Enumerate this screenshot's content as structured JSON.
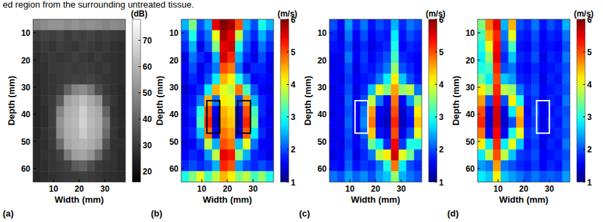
{
  "text": "ed region from the surrounding untreated tissue.",
  "chart_data": [
    {
      "type": "heatmap",
      "panel": "(a)",
      "xlabel": "Width (mm)",
      "ylabel": "Depth (mm)",
      "xlim": [
        2,
        38
      ],
      "ylim": [
        5,
        65
      ],
      "xticks": [
        10,
        20,
        30
      ],
      "yticks": [
        10,
        20,
        30,
        40,
        50,
        60
      ],
      "x": [
        3.5,
        6.5,
        9.5,
        12.5,
        15.5,
        18.5,
        21.5,
        24.5,
        27.5,
        30.5,
        33.5,
        36.5
      ],
      "y": [
        7,
        11,
        15,
        19,
        23,
        27,
        31,
        35,
        39,
        43,
        47,
        51,
        55,
        59,
        63
      ],
      "color": "gray",
      "colorbar_title": "(dB)",
      "clim": [
        16,
        78
      ],
      "cticks": [
        20,
        30,
        40,
        50,
        60,
        70
      ],
      "cells": [
        [
          48,
          50,
          52,
          52,
          50,
          52,
          50,
          51,
          50,
          48,
          50,
          49
        ],
        [
          30,
          32,
          31,
          33,
          30,
          32,
          31,
          32,
          30,
          31,
          30,
          29
        ],
        [
          28,
          30,
          29,
          31,
          30,
          29,
          31,
          30,
          29,
          30,
          28,
          27
        ],
        [
          27,
          29,
          30,
          29,
          30,
          31,
          30,
          29,
          30,
          29,
          28,
          27
        ],
        [
          27,
          28,
          30,
          30,
          31,
          30,
          31,
          30,
          29,
          30,
          28,
          27
        ],
        [
          26,
          28,
          29,
          30,
          31,
          32,
          31,
          32,
          30,
          29,
          28,
          27
        ],
        [
          26,
          28,
          29,
          31,
          40,
          48,
          50,
          45,
          35,
          30,
          28,
          26
        ],
        [
          25,
          28,
          30,
          38,
          55,
          58,
          62,
          57,
          52,
          33,
          29,
          26
        ],
        [
          25,
          27,
          31,
          48,
          58,
          60,
          66,
          60,
          57,
          40,
          28,
          26
        ],
        [
          25,
          27,
          31,
          52,
          59,
          61,
          67,
          61,
          58,
          45,
          29,
          27
        ],
        [
          25,
          28,
          30,
          50,
          58,
          60,
          65,
          60,
          57,
          42,
          29,
          26
        ],
        [
          26,
          27,
          30,
          42,
          56,
          59,
          60,
          58,
          54,
          36,
          28,
          27
        ],
        [
          26,
          28,
          29,
          32,
          46,
          55,
          56,
          52,
          42,
          31,
          28,
          26
        ],
        [
          26,
          27,
          29,
          30,
          32,
          38,
          40,
          35,
          30,
          29,
          28,
          26
        ],
        [
          25,
          27,
          28,
          29,
          30,
          30,
          31,
          30,
          29,
          28,
          27,
          26
        ]
      ]
    },
    {
      "type": "heatmap",
      "panel": "(b)",
      "xlabel": "Width (mm)",
      "ylabel": "Depth (mm)",
      "xlim": [
        2,
        38
      ],
      "ylim": [
        5,
        65
      ],
      "xticks": [
        10,
        20,
        30
      ],
      "yticks": [
        10,
        20,
        30,
        40,
        50,
        60
      ],
      "x": [
        3.5,
        6.5,
        9.5,
        12.5,
        15.5,
        18.5,
        21.5,
        24.5,
        27.5,
        30.5,
        33.5,
        36.5
      ],
      "y": [
        7,
        11,
        15,
        19,
        23,
        27,
        31,
        35,
        39,
        43,
        47,
        51,
        55,
        59,
        63
      ],
      "color": "jet",
      "colorbar_title": "(m/s)",
      "clim": [
        1,
        6
      ],
      "cticks": [
        1,
        2,
        3,
        4,
        5,
        6
      ],
      "boxes": [
        {
          "x": [
            12,
            17
          ],
          "y": [
            35,
            47
          ],
          "color": "#000000"
        },
        {
          "x": [
            24,
            29
          ],
          "y": [
            35,
            47
          ],
          "color": "#000000"
        }
      ],
      "cells": [
        [
          2.5,
          3.5,
          2.0,
          2.5,
          5.5,
          6.0,
          5.8,
          5.0,
          2.5,
          2.0,
          3.0,
          2.5
        ],
        [
          2.0,
          3.0,
          1.8,
          2.2,
          4.0,
          5.8,
          5.5,
          3.8,
          2.2,
          1.8,
          2.5,
          2.0
        ],
        [
          1.8,
          2.5,
          1.5,
          2.0,
          3.5,
          5.5,
          5.6,
          3.0,
          2.0,
          1.6,
          2.2,
          1.8
        ],
        [
          1.5,
          2.2,
          1.8,
          1.6,
          2.5,
          5.6,
          5.2,
          2.5,
          1.8,
          1.5,
          2.0,
          1.6
        ],
        [
          1.6,
          2.0,
          1.5,
          1.8,
          2.2,
          5.0,
          4.8,
          2.2,
          1.5,
          1.8,
          1.8,
          1.5
        ],
        [
          1.5,
          1.8,
          1.6,
          2.0,
          2.8,
          4.5,
          4.2,
          3.0,
          2.2,
          1.6,
          1.7,
          1.6
        ],
        [
          1.4,
          1.6,
          1.8,
          2.8,
          4.5,
          4.0,
          3.8,
          4.8,
          3.2,
          2.0,
          1.6,
          1.5
        ],
        [
          1.5,
          1.7,
          2.2,
          4.5,
          2.2,
          4.2,
          4.0,
          2.0,
          4.6,
          2.5,
          1.8,
          1.6
        ],
        [
          1.6,
          1.8,
          3.0,
          5.0,
          1.5,
          4.5,
          4.3,
          1.4,
          5.0,
          3.2,
          1.8,
          1.5
        ],
        [
          1.5,
          1.7,
          3.2,
          5.2,
          1.3,
          4.6,
          4.4,
          1.3,
          5.2,
          3.4,
          1.7,
          1.6
        ],
        [
          1.6,
          1.8,
          2.6,
          4.8,
          1.5,
          4.8,
          4.6,
          1.5,
          4.9,
          2.8,
          1.8,
          1.5
        ],
        [
          1.5,
          1.6,
          2.0,
          3.8,
          2.5,
          5.0,
          4.8,
          2.6,
          4.0,
          2.2,
          1.6,
          1.6
        ],
        [
          1.6,
          1.8,
          1.7,
          2.4,
          3.8,
          5.5,
          5.3,
          3.6,
          2.5,
          1.8,
          1.7,
          1.5
        ],
        [
          1.8,
          2.0,
          1.8,
          2.0,
          2.5,
          5.2,
          5.0,
          2.4,
          2.0,
          1.8,
          2.0,
          1.8
        ],
        [
          3.0,
          3.5,
          4.0,
          3.2,
          3.8,
          4.5,
          4.2,
          3.5,
          3.8,
          3.2,
          3.6,
          3.0
        ]
      ]
    },
    {
      "type": "heatmap",
      "panel": "(c)",
      "xlabel": "Width (mm)",
      "ylabel": "Depth (mm)",
      "xlim": [
        2,
        38
      ],
      "ylim": [
        5,
        65
      ],
      "xticks": [
        10,
        20,
        30
      ],
      "yticks": [
        10,
        20,
        30,
        40,
        50,
        60
      ],
      "x": [
        3.5,
        6.5,
        9.5,
        12.5,
        15.5,
        18.5,
        21.5,
        24.5,
        27.5,
        30.5,
        33.5,
        36.5
      ],
      "y": [
        7,
        11,
        15,
        19,
        23,
        27,
        31,
        35,
        39,
        43,
        47,
        51,
        55,
        59,
        63
      ],
      "color": "jet",
      "colorbar_title": "(m/s)",
      "clim": [
        1,
        6
      ],
      "cticks": [
        1,
        2,
        3,
        4,
        5,
        6
      ],
      "boxes": [
        {
          "x": [
            12,
            17
          ],
          "y": [
            35,
            47
          ],
          "color": "#ffffff"
        }
      ],
      "cells": [
        [
          2.0,
          1.6,
          2.4,
          1.8,
          2.2,
          1.7,
          2.0,
          1.8,
          2.5,
          1.8,
          2.2,
          2.0
        ],
        [
          1.8,
          1.5,
          2.2,
          1.6,
          2.0,
          1.6,
          1.8,
          1.7,
          2.8,
          1.7,
          2.0,
          1.8
        ],
        [
          1.7,
          1.6,
          2.0,
          1.5,
          1.8,
          1.5,
          1.7,
          1.8,
          3.0,
          1.6,
          1.8,
          1.7
        ],
        [
          1.6,
          1.5,
          2.2,
          1.6,
          1.9,
          1.6,
          1.8,
          2.0,
          3.2,
          1.8,
          1.7,
          1.6
        ],
        [
          1.5,
          1.6,
          2.0,
          1.5,
          1.8,
          1.7,
          1.9,
          2.2,
          3.6,
          2.0,
          1.8,
          1.6
        ],
        [
          1.6,
          1.5,
          1.9,
          1.6,
          1.7,
          1.8,
          2.2,
          2.8,
          4.2,
          2.6,
          2.0,
          1.7
        ],
        [
          1.5,
          1.6,
          2.0,
          1.5,
          1.8,
          2.6,
          4.0,
          3.5,
          4.6,
          3.6,
          3.8,
          2.2
        ],
        [
          1.6,
          1.5,
          2.1,
          1.6,
          2.0,
          3.8,
          2.2,
          1.6,
          4.8,
          1.6,
          2.4,
          3.6
        ],
        [
          1.5,
          1.6,
          2.0,
          1.5,
          2.2,
          4.6,
          1.6,
          1.4,
          5.0,
          1.4,
          1.8,
          4.2
        ],
        [
          1.6,
          1.5,
          2.1,
          1.6,
          2.3,
          4.8,
          1.5,
          1.3,
          5.2,
          1.3,
          1.7,
          4.4
        ],
        [
          1.5,
          1.6,
          2.0,
          1.5,
          2.1,
          4.4,
          1.7,
          1.5,
          5.0,
          1.5,
          2.0,
          4.0
        ],
        [
          1.6,
          1.5,
          1.9,
          1.6,
          1.9,
          3.4,
          2.8,
          1.8,
          5.4,
          1.9,
          3.0,
          3.0
        ],
        [
          1.5,
          1.6,
          2.0,
          1.5,
          1.8,
          2.2,
          3.8,
          4.2,
          5.6,
          4.0,
          3.4,
          2.0
        ],
        [
          1.7,
          1.6,
          2.1,
          1.7,
          1.9,
          1.8,
          2.2,
          3.0,
          4.8,
          2.8,
          2.0,
          1.8
        ],
        [
          2.2,
          2.0,
          2.4,
          2.1,
          2.3,
          2.0,
          2.4,
          2.6,
          3.6,
          2.5,
          2.2,
          2.0
        ]
      ]
    },
    {
      "type": "heatmap",
      "panel": "(d)",
      "xlabel": "Width (mm)",
      "ylabel": "Depth (mm)",
      "xlim": [
        2,
        38
      ],
      "ylim": [
        5,
        65
      ],
      "xticks": [
        10,
        20,
        30
      ],
      "yticks": [
        10,
        20,
        30,
        40,
        50,
        60
      ],
      "x": [
        3.5,
        6.5,
        9.5,
        12.5,
        15.5,
        18.5,
        21.5,
        24.5,
        27.5,
        30.5,
        33.5,
        36.5
      ],
      "y": [
        7,
        11,
        15,
        19,
        23,
        27,
        31,
        35,
        39,
        43,
        47,
        51,
        55,
        59,
        63
      ],
      "color": "jet",
      "colorbar_title": "(m/s)",
      "clim": [
        1,
        6
      ],
      "cticks": [
        1,
        2,
        3,
        4,
        5,
        6
      ],
      "boxes": [
        {
          "x": [
            25,
            30
          ],
          "y": [
            35,
            47
          ],
          "color": "#ffffff"
        }
      ],
      "cells": [
        [
          3.5,
          4.8,
          5.5,
          2.5,
          4.5,
          2.0,
          1.8,
          2.2,
          1.7,
          2.0,
          1.8,
          2.5
        ],
        [
          3.2,
          4.5,
          5.2,
          2.2,
          4.0,
          1.8,
          1.7,
          2.0,
          1.6,
          1.8,
          1.7,
          2.2
        ],
        [
          3.0,
          4.0,
          5.4,
          2.0,
          3.2,
          1.7,
          1.6,
          1.9,
          1.6,
          1.7,
          1.6,
          2.0
        ],
        [
          2.8,
          3.6,
          5.5,
          1.8,
          2.6,
          1.8,
          1.7,
          2.0,
          1.5,
          1.8,
          1.7,
          2.2
        ],
        [
          3.0,
          3.2,
          5.2,
          2.0,
          2.2,
          1.7,
          1.6,
          1.8,
          1.6,
          1.7,
          1.8,
          2.0
        ],
        [
          3.4,
          2.8,
          5.0,
          2.6,
          2.4,
          1.8,
          1.7,
          1.9,
          1.5,
          1.8,
          1.7,
          2.1
        ],
        [
          4.2,
          3.6,
          5.2,
          3.8,
          3.6,
          2.2,
          1.8,
          2.0,
          1.6,
          1.7,
          1.8,
          2.0
        ],
        [
          4.6,
          2.0,
          5.4,
          2.0,
          4.2,
          3.0,
          1.7,
          1.9,
          1.5,
          1.8,
          1.7,
          2.2
        ],
        [
          5.0,
          1.5,
          5.6,
          1.5,
          2.8,
          4.4,
          1.6,
          2.0,
          1.6,
          1.7,
          1.8,
          2.0
        ],
        [
          5.2,
          1.4,
          5.6,
          1.4,
          2.0,
          4.6,
          1.7,
          1.9,
          1.5,
          1.8,
          1.7,
          2.1
        ],
        [
          4.8,
          1.6,
          5.4,
          1.6,
          3.0,
          4.0,
          1.8,
          2.0,
          1.6,
          1.7,
          1.8,
          2.0
        ],
        [
          4.2,
          2.8,
          5.2,
          2.8,
          4.0,
          2.6,
          1.7,
          1.9,
          1.5,
          1.8,
          1.7,
          2.2
        ],
        [
          2.8,
          3.8,
          5.0,
          3.8,
          2.6,
          1.9,
          1.8,
          2.0,
          1.6,
          1.7,
          1.8,
          2.0
        ],
        [
          2.4,
          2.2,
          4.6,
          2.2,
          2.0,
          1.8,
          1.7,
          1.9,
          1.6,
          1.8,
          1.7,
          2.1
        ],
        [
          2.8,
          2.6,
          4.2,
          2.6,
          2.4,
          2.2,
          2.0,
          2.2,
          2.0,
          2.1,
          2.0,
          2.4
        ]
      ]
    }
  ]
}
